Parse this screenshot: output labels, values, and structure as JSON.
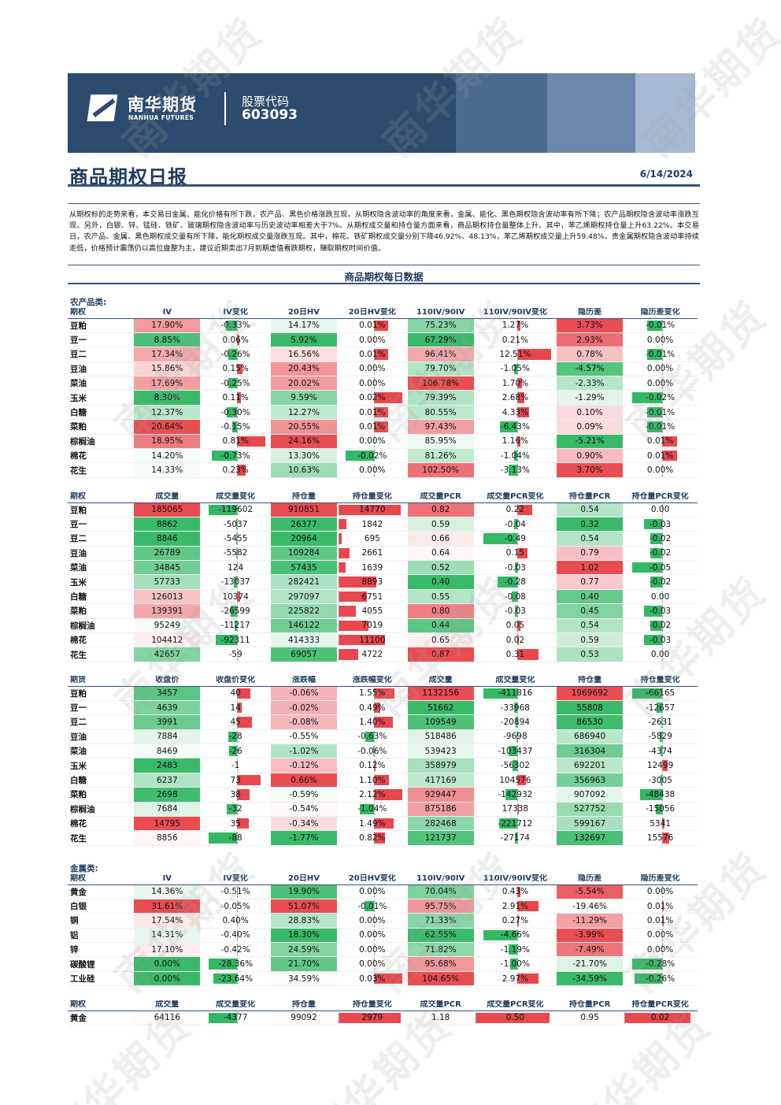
{
  "header": {
    "logo_cn": "南华期货",
    "logo_en": "NANHUA FUTURES",
    "code_label": "股票代码",
    "code_value": "603093",
    "title": "商品期权日报",
    "date": "6/14/2024",
    "watermark": "南华期货"
  },
  "summary": "从期权标的走势来看，本交易日金属、能化价格有所下跌，农产品、黑色价格涨跌互现。从期权隐含波动率的角度来看，金属、能化、黑色期权隐含波动率有所下降；农产品期权隐含波动率涨跌互现。另外，白银、锌、锰硅、铁矿、玻璃期权隐含波动率与历史波动率相差大于7%。从期权成交量和持仓量方面来看，商品期权持仓量整体上升。其中，苯乙烯期权持仓量上升63.22%。本交易日，农产品、金属、黑色期权成交量有所下降，能化期权成交量涨跌互现。其中，棉花、铁矿期权成交量分别下降46.92%、48.13%，苯乙烯期权成交量上升59.48%。贵金属期权隐含波动率持续走低，价格预计震荡仍以高位盘整为主，建议近期卖出7月到期虚值看跌期权，赚取期权时间价值。",
  "section_title": "商品期权每日数据",
  "colors": {
    "pos": "#e8474d",
    "neg": "#33b864",
    "header": "#1f3a5f"
  },
  "tables": [
    {
      "category": "农产品类:",
      "columns": [
        "期权",
        "IV",
        "IV变化",
        "20日HV",
        "20日HV变化",
        "110IV/90IV",
        "110IV/90IV变化",
        "隐历差",
        "隐历差变化"
      ],
      "styles": [
        "",
        "s",
        "b",
        "s",
        "b",
        "s",
        "b",
        "s",
        "b"
      ],
      "rows": [
        [
          "豆粕",
          "17.90%",
          "-0.33%",
          "14.17%",
          "0.01%",
          "75.23%",
          "1.27%",
          "3.73%",
          "-0.01%"
        ],
        [
          "豆一",
          "8.85%",
          "0.06%",
          "5.92%",
          "0.00%",
          "67.29%",
          "0.21%",
          "2.93%",
          "0.00%"
        ],
        [
          "豆二",
          "17.34%",
          "-0.26%",
          "16.56%",
          "0.01%",
          "96.41%",
          "12.51%",
          "0.78%",
          "-0.01%"
        ],
        [
          "豆油",
          "15.86%",
          "0.15%",
          "20.43%",
          "0.00%",
          "79.70%",
          "-1.05%",
          "-4.57%",
          "0.00%"
        ],
        [
          "菜油",
          "17.69%",
          "-0.25%",
          "20.02%",
          "0.00%",
          "106.78%",
          "1.70%",
          "-2.33%",
          "0.00%"
        ],
        [
          "玉米",
          "8.30%",
          "0.11%",
          "9.59%",
          "0.02%",
          "79.39%",
          "2.68%",
          "-1.29%",
          "-0.02%"
        ],
        [
          "白糖",
          "12.37%",
          "-0.30%",
          "12.27%",
          "0.01%",
          "80.55%",
          "4.33%",
          "0.10%",
          "-0.01%"
        ],
        [
          "菜粕",
          "20.64%",
          "-0.15%",
          "20.55%",
          "0.01%",
          "97.43%",
          "-6.43%",
          "0.09%",
          "-0.01%"
        ],
        [
          "棕榈油",
          "18.95%",
          "0.81%",
          "24.16%",
          "0.00%",
          "85.95%",
          "1.16%",
          "-5.21%",
          "0.01%"
        ],
        [
          "棉花",
          "14.20%",
          "-0.73%",
          "13.30%",
          "-0.02%",
          "81.26%",
          "-1.04%",
          "0.90%",
          "0.01%"
        ],
        [
          "花生",
          "14.33%",
          "0.23%",
          "10.63%",
          "0.00%",
          "102.50%",
          "-3.13%",
          "3.70%",
          "0.00%"
        ]
      ]
    },
    {
      "category": "",
      "columns": [
        "期权",
        "成交量",
        "成交量变化",
        "持仓量",
        "持仓量变化",
        "成交量PCR",
        "成交量PCR变化",
        "持仓量PCR",
        "持仓量PCR变化"
      ],
      "styles": [
        "",
        "s",
        "b",
        "s",
        "b",
        "s",
        "b",
        "s",
        "b"
      ],
      "rows": [
        [
          "豆粕",
          "185065",
          "-119602",
          "910851",
          "14770",
          "0.82",
          "0.22",
          "0.54",
          "0.00"
        ],
        [
          "豆一",
          "8862",
          "-5037",
          "26377",
          "1842",
          "0.59",
          "-0.04",
          "0.32",
          "-0.03"
        ],
        [
          "豆二",
          "8846",
          "-5455",
          "20964",
          "695",
          "0.66",
          "-0.49",
          "0.54",
          "-0.02"
        ],
        [
          "豆油",
          "26789",
          "-5582",
          "109284",
          "2661",
          "0.64",
          "0.15",
          "0.79",
          "-0.02"
        ],
        [
          "菜油",
          "34845",
          "124",
          "57435",
          "1639",
          "0.52",
          "-0.03",
          "1.02",
          "-0.05"
        ],
        [
          "玉米",
          "57733",
          "-13037",
          "282421",
          "8893",
          "0.40",
          "-0.28",
          "0.77",
          "-0.02"
        ],
        [
          "白糖",
          "126013",
          "10374",
          "297097",
          "6751",
          "0.55",
          "-0.08",
          "0.40",
          "0.00"
        ],
        [
          "菜粕",
          "139391",
          "-26599",
          "225822",
          "4055",
          "0.80",
          "-0.03",
          "0.45",
          "-0.03"
        ],
        [
          "棕榈油",
          "95249",
          "-11217",
          "146122",
          "7019",
          "0.44",
          "0.05",
          "0.54",
          "-0.02"
        ],
        [
          "棉花",
          "104412",
          "-92311",
          "414333",
          "11100",
          "0.65",
          "0.02",
          "0.59",
          "-0.03"
        ],
        [
          "花生",
          "42657",
          "-59",
          "69057",
          "4722",
          "0.87",
          "0.31",
          "0.53",
          "0.00"
        ]
      ]
    },
    {
      "category": "",
      "columns": [
        "期货",
        "收盘价",
        "收盘价变化",
        "涨跌幅",
        "涨跌幅变化",
        "成交量",
        "成交量变化",
        "持仓量",
        "持仓量变化"
      ],
      "styles": [
        "",
        "s",
        "b",
        "s",
        "b",
        "s",
        "b",
        "s",
        "b"
      ],
      "rows": [
        [
          "豆粕",
          "3457",
          "40",
          "-0.06%",
          "1.55%",
          "1132156",
          "-411816",
          "1969692",
          "-66165"
        ],
        [
          "豆一",
          "4639",
          "14",
          "-0.02%",
          "0.49%",
          "51662",
          "-33968",
          "55808",
          "-12657"
        ],
        [
          "豆二",
          "3991",
          "45",
          "-0.08%",
          "1.40%",
          "109549",
          "-20894",
          "86530",
          "-2631"
        ],
        [
          "豆油",
          "7884",
          "-28",
          "-0.55%",
          "-0.63%",
          "518486",
          "-9698",
          "686940",
          "-5829"
        ],
        [
          "菜油",
          "8469",
          "-26",
          "-1.02%",
          "-0.06%",
          "539423",
          "-103437",
          "316304",
          "-4374"
        ],
        [
          "玉米",
          "2483",
          "-1",
          "-0.12%",
          "0.12%",
          "358979",
          "-56302",
          "692201",
          "12499"
        ],
        [
          "白糖",
          "6237",
          "73",
          "0.66%",
          "1.10%",
          "417169",
          "104576",
          "356963",
          "-3005"
        ],
        [
          "菜粕",
          "2698",
          "38",
          "-0.59%",
          "2.12%",
          "929447",
          "-142932",
          "907092",
          "-48438"
        ],
        [
          "棕榈油",
          "7684",
          "-32",
          "-0.54%",
          "-1.04%",
          "875186",
          "17338",
          "527752",
          "-15056"
        ],
        [
          "棉花",
          "14795",
          "35",
          "-0.34%",
          "1.49%",
          "282468",
          "-221712",
          "599167",
          "5341"
        ],
        [
          "花生",
          "8856",
          "-88",
          "-1.77%",
          "0.82%",
          "121737",
          "-27174",
          "132697",
          "15576"
        ]
      ]
    },
    {
      "category": "金属类:",
      "columns": [
        "期权",
        "IV",
        "IV变化",
        "20日HV",
        "20日HV变化",
        "110IV/90IV",
        "110IV/90IV变化",
        "隐历差",
        "隐历差变化"
      ],
      "styles": [
        "",
        "s",
        "b",
        "s",
        "b",
        "s",
        "b",
        "s",
        "b"
      ],
      "rows": [
        [
          "黄金",
          "14.36%",
          "-0.51%",
          "19.90%",
          "0.00%",
          "70.04%",
          "0.43%",
          "-5.54%",
          "0.00%"
        ],
        [
          "白银",
          "31.61%",
          "-0.05%",
          "51.07%",
          "-0.01%",
          "95.75%",
          "2.91%",
          "-19.46%",
          "0.01%"
        ],
        [
          "铜",
          "17.54%",
          "0.40%",
          "28.83%",
          "0.00%",
          "71.33%",
          "0.27%",
          "-11.29%",
          "0.01%"
        ],
        [
          "铝",
          "14.31%",
          "-0.40%",
          "18.30%",
          "0.00%",
          "62.55%",
          "-4.66%",
          "-3.99%",
          "0.00%"
        ],
        [
          "锌",
          "17.10%",
          "-0.42%",
          "24.59%",
          "0.00%",
          "71.82%",
          "-1.19%",
          "-7.49%",
          "0.00%"
        ],
        [
          "碳酸锂",
          "0.00%",
          "-28.36%",
          "21.70%",
          "0.00%",
          "95.68%",
          "-1.00%",
          "-21.70%",
          "-0.28%"
        ],
        [
          "工业硅",
          "0.00%",
          "-23.64%",
          "34.59%",
          "0.03%",
          "104.65%",
          "2.97%",
          "-34.59%",
          "-0.26%"
        ]
      ]
    },
    {
      "category": "",
      "columns": [
        "期权",
        "成交量",
        "成交量变化",
        "持仓量",
        "持仓量变化",
        "成交量PCR",
        "成交量PCR变化",
        "持仓量PCR",
        "持仓量PCR变化"
      ],
      "styles": [
        "",
        "s",
        "b",
        "s",
        "b",
        "s",
        "b",
        "s",
        "b"
      ],
      "rows": [
        [
          "黄金",
          "64116",
          "-4377",
          "99092",
          "2979",
          "1.18",
          "0.50",
          "0.95",
          "0.02"
        ]
      ]
    }
  ]
}
